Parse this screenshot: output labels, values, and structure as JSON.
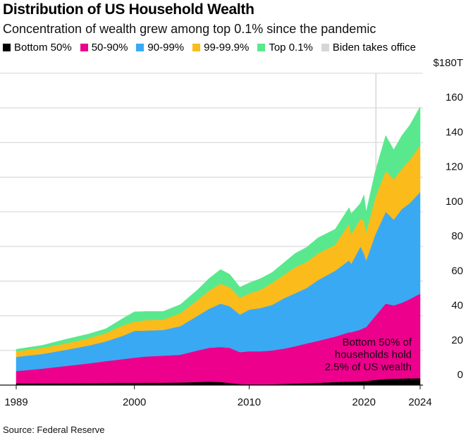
{
  "header": {
    "title": "Distribution of US Household Wealth",
    "subtitle": "Concentration of wealth grew among top 0.1% since the pandemic"
  },
  "legend": [
    {
      "label": "Bottom 50%",
      "color": "#000000"
    },
    {
      "label": "50-90%",
      "color": "#ec008c"
    },
    {
      "label": "90-99%",
      "color": "#39a9f4"
    },
    {
      "label": "99-99.9%",
      "color": "#fbbb1b"
    },
    {
      "label": "Top 0.1%",
      "color": "#5ae88e"
    },
    {
      "label": "Biden takes office",
      "color": "#d6d6d6"
    }
  ],
  "source": "Source: Federal Reserve",
  "chart_data": {
    "type": "area",
    "stacked": true,
    "title": "Distribution of US Household Wealth",
    "subtitle": "Concentration of wealth grew among top 0.1% since the pandemic",
    "xlabel": "",
    "ylabel": "",
    "units": "trillions of US dollars",
    "ylim": [
      0,
      180
    ],
    "xlim": [
      1989.7,
      2024.9
    ],
    "y_ticks": [
      0,
      20,
      40,
      60,
      80,
      100,
      120,
      140,
      160,
      180
    ],
    "y_tick_labels": [
      "0",
      "20",
      "40",
      "60",
      "80",
      "100",
      "120",
      "140",
      "160",
      "$180T"
    ],
    "x_ticks": [
      {
        "value": 1989.7,
        "label": "1989"
      },
      {
        "value": 2000,
        "label": "2000"
      },
      {
        "value": 2010,
        "label": "2010"
      },
      {
        "value": 2020,
        "label": "2020"
      },
      {
        "value": 2024.9,
        "label": "2024"
      }
    ],
    "grid": true,
    "y_axis_side": "right",
    "legend_position": "top-left",
    "x": [
      1989.7,
      1992,
      1994,
      1996,
      1997.5,
      1999,
      2000,
      2001,
      2002.5,
      2004,
      2005.5,
      2006.5,
      2007.5,
      2008.3,
      2009.2,
      2010,
      2011,
      2012,
      2013,
      2014,
      2015,
      2016,
      2017.5,
      2018.7,
      2018.9,
      2019.7,
      2020.0,
      2020.2,
      2021.0,
      2021.9,
      2022.6,
      2023.3,
      2024.0,
      2024.9
    ],
    "series": [
      {
        "name": "Bottom 50%",
        "color": "#000000",
        "values": [
          1.0,
          1.0,
          1.0,
          1.1,
          1.2,
          1.3,
          1.3,
          1.4,
          1.4,
          1.5,
          1.8,
          2.0,
          1.8,
          1.2,
          0.6,
          0.5,
          0.4,
          0.5,
          0.7,
          0.9,
          1.1,
          1.3,
          1.8,
          2.0,
          2.0,
          2.2,
          2.3,
          2.4,
          3.0,
          3.5,
          3.7,
          3.8,
          3.9,
          4.0
        ]
      },
      {
        "name": "50-90%",
        "color": "#ec008c",
        "values": [
          7.1,
          8.5,
          10.0,
          11.4,
          12.6,
          13.7,
          14.5,
          15.1,
          15.6,
          16.0,
          18.2,
          19.5,
          20.2,
          20.3,
          18.4,
          19.0,
          19.1,
          19.5,
          20.3,
          21.5,
          22.9,
          24.2,
          26.2,
          28.5,
          28.5,
          29.8,
          30.7,
          31.1,
          37.0,
          43.5,
          42.3,
          43.7,
          45.7,
          48.8
        ]
      },
      {
        "name": "90-99%",
        "color": "#39a9f4",
        "values": [
          8.2,
          8.5,
          9.3,
          10.3,
          11.4,
          13.5,
          15.5,
          15.0,
          14.8,
          16.5,
          20.0,
          22.5,
          25.0,
          24.0,
          21.7,
          24.0,
          25.0,
          26.3,
          29.0,
          30.6,
          32.0,
          35.1,
          38.0,
          41.5,
          39.5,
          48.0,
          43.0,
          38.5,
          47.0,
          53.0,
          49.5,
          54.1,
          55.4,
          58.6
        ]
      },
      {
        "name": "99-99.9%",
        "color": "#fbbb1b",
        "values": [
          3.2,
          3.5,
          3.7,
          4.2,
          4.8,
          6.0,
          5.3,
          6.0,
          6.0,
          7.5,
          9.0,
          10.5,
          11.5,
          11.0,
          9.7,
          9.5,
          10.5,
          12.7,
          13.5,
          15.0,
          15.0,
          15.4,
          15.0,
          21.0,
          17.0,
          16.0,
          19.0,
          16.0,
          21.5,
          23.6,
          23.2,
          23.2,
          25.0,
          26.8
        ]
      },
      {
        "name": "Top 0.1%",
        "color": "#5ae88e",
        "values": [
          1.2,
          1.5,
          2.4,
          2.5,
          2.5,
          4.0,
          5.7,
          5.0,
          4.7,
          5.0,
          6.0,
          7.0,
          8.2,
          7.5,
          6.1,
          6.0,
          6.5,
          6.0,
          7.0,
          8.0,
          8.5,
          9.0,
          9.0,
          9.4,
          12.0,
          9.0,
          14.8,
          12.0,
          15.1,
          20.4,
          17.1,
          19.2,
          20.0,
          22.4
        ]
      }
    ],
    "annotations": [
      {
        "type": "vertical-line",
        "x": 2021.05,
        "label": "Biden takes office",
        "color": "#d6d6d6"
      },
      {
        "type": "text",
        "lines": [
          "Bottom 50% of",
          "households hold",
          "2.5% of US wealth"
        ],
        "anchor_x": 2024.9,
        "anchor_y": 22,
        "align": "right"
      }
    ]
  }
}
